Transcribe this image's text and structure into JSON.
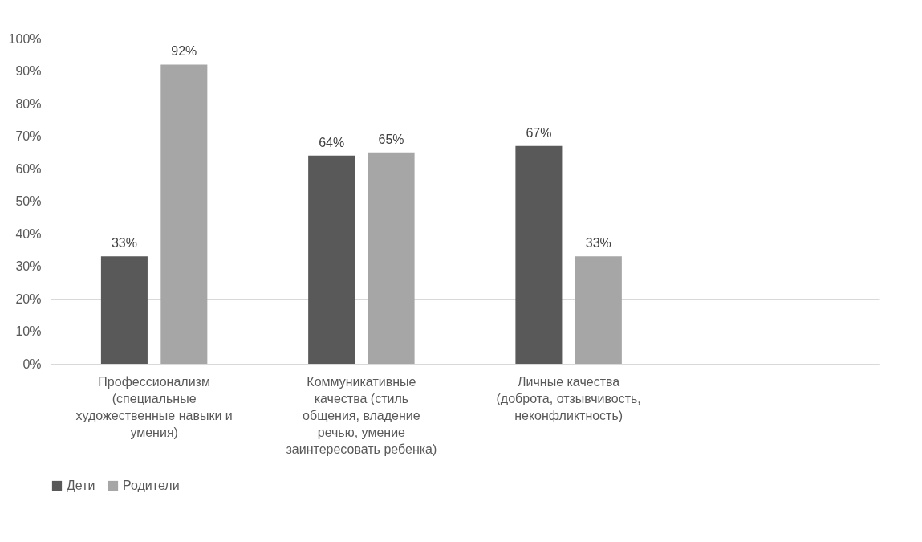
{
  "chart_data": {
    "type": "bar",
    "categories": [
      "Профессионализм (специальные художественные навыки и умения)",
      "Коммуникативные качества (стиль общения, владение речью, умение заинтересовать ребенка)",
      "Личные качества (доброта, отзывчивость, неконфликтность)",
      null
    ],
    "series": [
      {
        "name": "Дети",
        "color": "#595959",
        "values": [
          33,
          64,
          67,
          null
        ],
        "value_labels": [
          "33%",
          "64%",
          "67%",
          null
        ]
      },
      {
        "name": "Родители",
        "color": "#a6a6a6",
        "values": [
          92,
          65,
          33,
          null
        ],
        "value_labels": [
          "92%",
          "65%",
          "33%",
          null
        ]
      }
    ],
    "ylim": [
      0,
      100
    ],
    "yticks": [
      {
        "value": 0,
        "label": "0%"
      },
      {
        "value": 10,
        "label": "10%"
      },
      {
        "value": 20,
        "label": "20%"
      },
      {
        "value": 30,
        "label": "30%"
      },
      {
        "value": 40,
        "label": "40%"
      },
      {
        "value": 50,
        "label": "50%"
      },
      {
        "value": 60,
        "label": "60%"
      },
      {
        "value": 70,
        "label": "70%"
      },
      {
        "value": 80,
        "label": "80%"
      },
      {
        "value": 90,
        "label": "90%"
      },
      {
        "value": 100,
        "label": "100%"
      }
    ],
    "grid": "y",
    "legend": "bottom"
  }
}
